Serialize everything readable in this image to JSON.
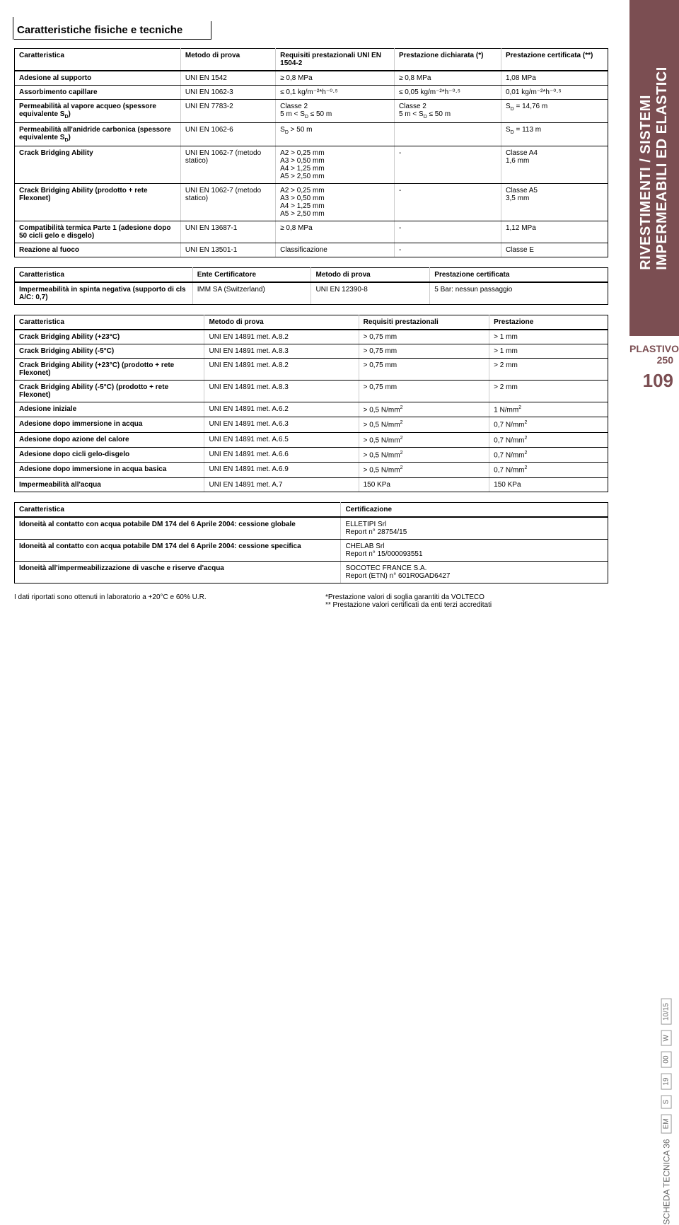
{
  "section_title": "Caratteristiche fisiche e tecniche",
  "side": {
    "tab_line1": "RIVESTIMENTI / SISTEMI",
    "tab_line2": "IMPERMEABILI ED ELASTICI",
    "plastivo": "PLASTIVO 250",
    "page_num": "109",
    "scheda": "SCHEDA TECNICA 36",
    "codes": [
      "EM",
      "S",
      "19",
      "00",
      "W",
      "10/15"
    ]
  },
  "table1": {
    "headers": [
      "Caratteristica",
      "Metodo di prova",
      "Requisiti prestazionali UNI EN 1504-2",
      "Prestazione dichiarata (*)",
      "Prestazione certificata (**)"
    ],
    "rows": [
      [
        "Adesione al supporto",
        "UNI EN 1542",
        "≥ 0,8 MPa",
        "≥ 0,8 MPa",
        "1,08 MPa"
      ],
      [
        "Assorbimento capillare",
        "UNI EN 1062-3",
        "≤ 0,1 kg/m⁻²*h⁻⁰·⁵",
        "≤ 0,05 kg/m⁻²*h⁻⁰·⁵",
        "0,01 kg/m⁻²*h⁻⁰·⁵"
      ],
      [
        "Permeabilità al vapore acqueo (spessore equivalente S_D)",
        "UNI EN 7783-2",
        "Classe 2\n5 m < S_D ≤ 50 m",
        "Classe 2\n5 m < S_D ≤ 50 m",
        "S_D = 14,76 m"
      ],
      [
        "Permeabilità all'anidride carbonica (spessore equivalente S_D)",
        "UNI EN 1062-6",
        "S_D > 50 m",
        "",
        "S_D = 113 m"
      ],
      [
        "Crack Bridging Ability",
        "UNI EN 1062-7 (metodo statico)",
        "A2 > 0,25 mm\nA3 > 0,50 mm\nA4 > 1,25 mm\nA5 > 2,50 mm",
        "-",
        "Classe A4\n1,6 mm"
      ],
      [
        "Crack Bridging Ability (prodotto + rete Flexonet)",
        "UNI EN 1062-7 (metodo statico)",
        "A2 > 0,25 mm\nA3 > 0,50 mm\nA4 > 1,25 mm\nA5 > 2,50 mm",
        "-",
        "Classe A5\n3,5 mm"
      ],
      [
        "Compatibilità termica Parte 1 (adesione dopo 50 cicli gelo e disgelo)",
        "UNI EN 13687-1",
        "≥ 0,8 MPa",
        "-",
        "1,12 MPa"
      ],
      [
        "Reazione al fuoco",
        "UNI EN 13501-1",
        "Classificazione",
        "-",
        "Classe E"
      ]
    ]
  },
  "table2": {
    "headers": [
      "Caratteristica",
      "Ente Certificatore",
      "Metodo di prova",
      "Prestazione certificata"
    ],
    "rows": [
      [
        "Impermeabilità in spinta negativa (supporto di cls A/C: 0,7)",
        "IMM SA (Switzerland)",
        "UNI EN 12390-8",
        "5 Bar: nessun passaggio"
      ]
    ]
  },
  "table3": {
    "headers": [
      "Caratteristica",
      "Metodo di prova",
      "Requisiti prestazionali",
      "Prestazione"
    ],
    "rows": [
      [
        "Crack Bridging Ability (+23°C)",
        "UNI EN 14891 met. A.8.2",
        "> 0,75 mm",
        "> 1 mm"
      ],
      [
        "Crack Bridging Ability (-5°C)",
        "UNI EN 14891 met. A.8.3",
        "> 0,75 mm",
        "> 1 mm"
      ],
      [
        "Crack Bridging Ability (+23°C) (prodotto + rete Flexonet)",
        "UNI EN 14891 met. A.8.2",
        "> 0,75 mm",
        "> 2 mm"
      ],
      [
        "Crack Bridging Ability (-5°C) (prodotto + rete Flexonet)",
        "UNI EN 14891 met. A.8.3",
        "> 0,75 mm",
        "> 2 mm"
      ],
      [
        "Adesione iniziale",
        "UNI EN 14891 met. A.6.2",
        "> 0,5 N/mm²",
        "1 N/mm²"
      ],
      [
        "Adesione dopo immersione in acqua",
        "UNI EN 14891 met. A.6.3",
        "> 0,5 N/mm²",
        "0,7 N/mm²"
      ],
      [
        "Adesione dopo azione del calore",
        "UNI EN 14891 met. A.6.5",
        "> 0,5 N/mm²",
        "0,7 N/mm²"
      ],
      [
        "Adesione dopo cicli gelo-disgelo",
        "UNI EN 14891 met. A.6.6",
        "> 0,5 N/mm²",
        "0,7 N/mm²"
      ],
      [
        "Adesione dopo immersione in acqua basica",
        "UNI EN 14891 met. A.6.9",
        "> 0,5 N/mm²",
        "0,7 N/mm²"
      ],
      [
        "Impermeabilità all'acqua",
        "UNI EN 14891 met. A.7",
        "150 KPa",
        "150 KPa"
      ]
    ]
  },
  "table4": {
    "headers": [
      "Caratteristica",
      "Certificazione"
    ],
    "rows": [
      [
        "Idoneità al contatto con acqua potabile DM 174 del 6 Aprile 2004: cessione globale",
        "ELLETIPI Srl\nReport n° 28754/15"
      ],
      [
        "Idoneità al contatto con acqua potabile DM 174 del 6 Aprile 2004: cessione specifica",
        "CHELAB Srl\nReport n° 15/000093551"
      ],
      [
        "Idoneità all'impermeabilizzazione di vasche e riserve d'acqua",
        "SOCOTEC FRANCE S.A.\nReport (ETN) n° 601R0GAD6427"
      ]
    ]
  },
  "footer": {
    "left": "I dati riportati sono ottenuti in laboratorio a +20°C e 60% U.R.",
    "right1": "*Prestazione valori di soglia garantiti da VOLTECO",
    "right2": "** Prestazione valori certificati da enti terzi accreditati"
  }
}
